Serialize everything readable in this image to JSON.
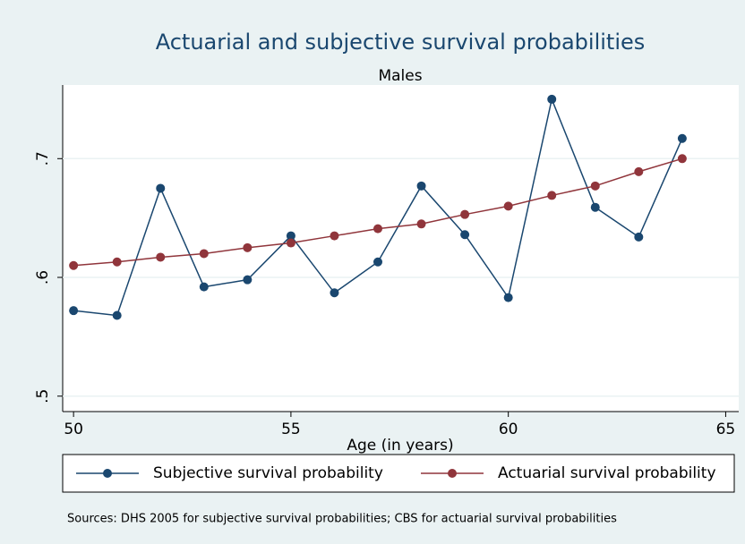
{
  "chart_data": {
    "type": "line",
    "title": "Actuarial and subjective survival probabilities",
    "subtitle": "Males",
    "x_label": "Age (in years)",
    "note": "Sources: DHS 2005 for subjective survival probabilities; CBS for actuarial survival probabilities",
    "x": [
      50,
      51,
      52,
      53,
      54,
      55,
      56,
      57,
      58,
      59,
      60,
      61,
      62,
      63,
      64
    ],
    "series": [
      {
        "name": "Subjective survival probability",
        "color": "#1a476f",
        "values": [
          0.572,
          0.568,
          0.675,
          0.592,
          0.598,
          0.635,
          0.587,
          0.613,
          0.677,
          0.636,
          0.583,
          0.75,
          0.659,
          0.634,
          0.717
        ]
      },
      {
        "name": "Actuarial survival probability",
        "color": "#90353b",
        "values": [
          0.61,
          0.613,
          0.617,
          0.62,
          0.625,
          0.629,
          0.635,
          0.641,
          0.645,
          0.653,
          0.66,
          0.669,
          0.677,
          0.689,
          0.7
        ]
      }
    ],
    "xlim": [
      49.75,
      65.3
    ],
    "xticks": [
      50,
      55,
      60,
      65
    ],
    "ylim": [
      0.487,
      0.762
    ],
    "yticks": [
      {
        "value": 0.5,
        "label": ".5"
      },
      {
        "value": 0.6,
        "label": ".6"
      },
      {
        "value": 0.7,
        "label": ".7"
      }
    ],
    "grid": true,
    "legend": "bottom"
  }
}
